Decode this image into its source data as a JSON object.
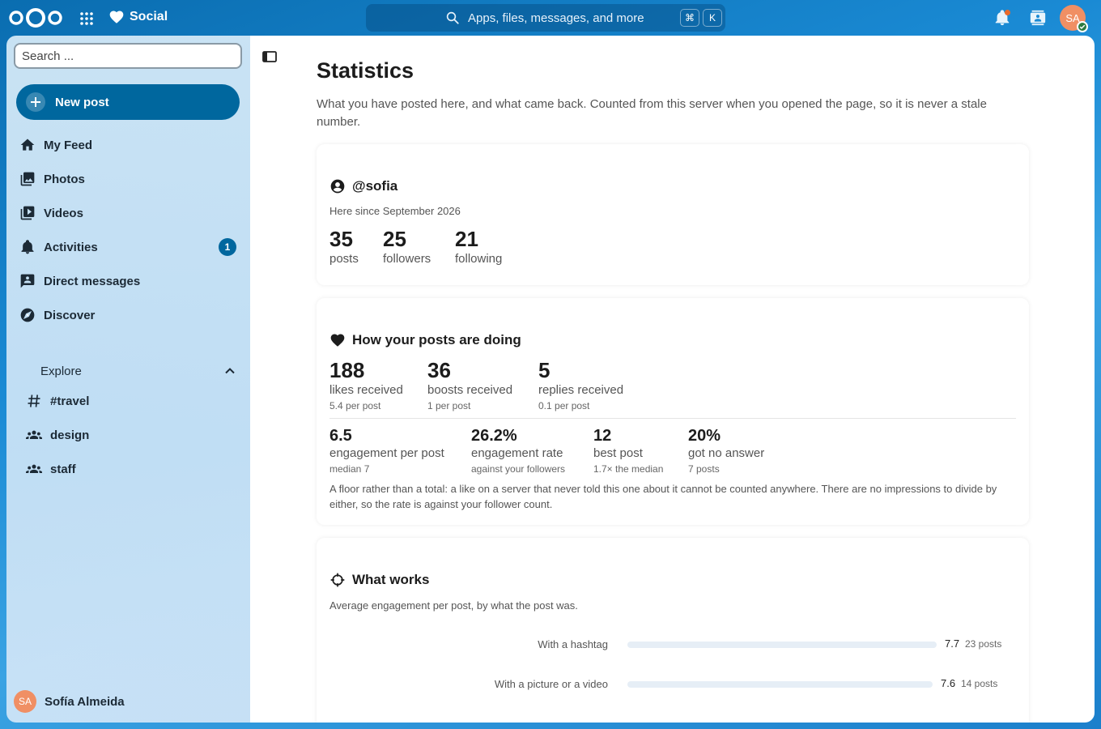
{
  "topbar": {
    "app_name": "Social",
    "search_placeholder": "Apps, files, messages, and more",
    "shortcut_cmd": "⌘",
    "shortcut_key": "K",
    "user_initials": "SA"
  },
  "sidebar": {
    "search_placeholder": "Search ...",
    "new_post": "New post",
    "nav": [
      {
        "label": "My Feed",
        "icon": "home-icon"
      },
      {
        "label": "Photos",
        "icon": "image-icon"
      },
      {
        "label": "Videos",
        "icon": "video-icon"
      },
      {
        "label": "Activities",
        "icon": "bell-icon",
        "badge": "1"
      },
      {
        "label": "Direct messages",
        "icon": "message-icon"
      },
      {
        "label": "Discover",
        "icon": "compass-icon"
      }
    ],
    "explore": {
      "label": "Explore",
      "items": [
        {
          "label": "#travel",
          "icon": "hashtag-icon"
        },
        {
          "label": "design",
          "icon": "group-icon"
        },
        {
          "label": "staff",
          "icon": "group-icon"
        }
      ]
    },
    "user": {
      "name": "Sofía Almeida",
      "initials": "SA"
    }
  },
  "main": {
    "title": "Statistics",
    "intro": "What you have posted here, and what came back. Counted from this server when you opened the page, so it is never a stale number.",
    "profile": {
      "handle": "@sofia",
      "since": "Here since September 2026",
      "stats": [
        {
          "value": "35",
          "label": "posts"
        },
        {
          "value": "25",
          "label": "followers"
        },
        {
          "value": "21",
          "label": "following"
        }
      ]
    },
    "performance": {
      "title": "How your posts are doing",
      "top": [
        {
          "value": "188",
          "label": "likes received",
          "sub": "5.4 per post"
        },
        {
          "value": "36",
          "label": "boosts received",
          "sub": "1 per post"
        },
        {
          "value": "5",
          "label": "replies received",
          "sub": "0.1 per post"
        }
      ],
      "bottom": [
        {
          "value": "6.5",
          "label": "engagement per post",
          "sub": "median 7"
        },
        {
          "value": "26.2%",
          "label": "engagement rate",
          "sub": "against your followers"
        },
        {
          "value": "12",
          "label": "best post",
          "sub": "1.7× the median"
        },
        {
          "value": "20%",
          "label": "got no answer",
          "sub": "7 posts"
        }
      ],
      "note": "A floor rather than a total: a like on a server that never told this one about it cannot be counted anywhere. There are no impressions to divide by either, so the rate is against your follower count."
    },
    "what_works": {
      "title": "What works",
      "subtitle": "Average engagement per post, by what the post was.",
      "rows": [
        {
          "label": "With a hashtag",
          "value": "7.7",
          "count": "23 posts",
          "fraction": 1.0
        },
        {
          "label": "With a picture or a video",
          "value": "7.6",
          "count": "14 posts",
          "fraction": 0.987
        }
      ]
    }
  },
  "colors": {
    "accent": "#00679e",
    "avatar": "#f08f64",
    "notification_dot": "#e9692c",
    "status_online": "#2d7b41"
  }
}
